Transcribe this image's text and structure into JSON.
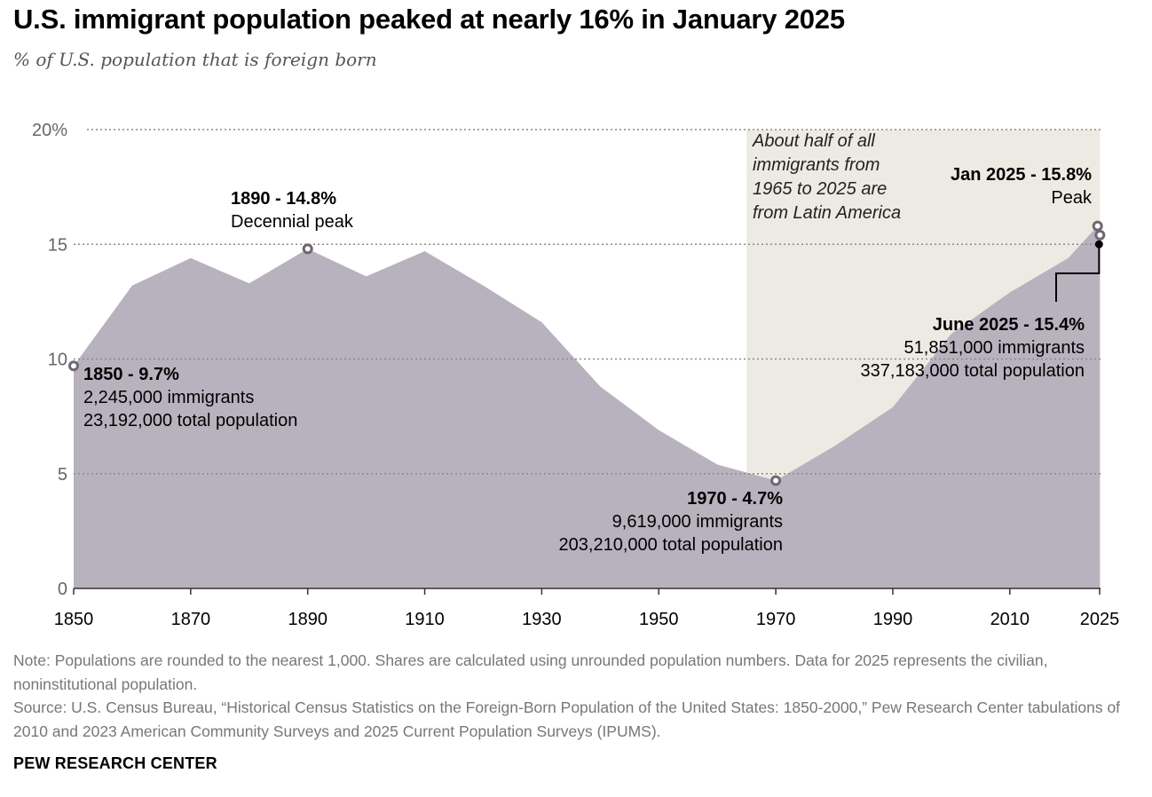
{
  "title": "U.S. immigrant population peaked at nearly 16% in January 2025",
  "subtitle": "% of U.S. population that is foreign born",
  "chart_data": {
    "type": "area",
    "title": "U.S. immigrant population peaked at nearly 16% in January 2025",
    "subtitle": "% of U.S. population that is foreign born",
    "xlabel": "",
    "ylabel": "",
    "xlim": [
      1850,
      2025.5
    ],
    "ylim": [
      0,
      20
    ],
    "x_ticks": [
      1850,
      1870,
      1890,
      1910,
      1930,
      1950,
      1970,
      1990,
      2010,
      2025
    ],
    "y_ticks": [
      0,
      5,
      10,
      15,
      20
    ],
    "y_tick_labels": [
      "0",
      "5",
      "10",
      "15",
      "20%"
    ],
    "grid": "horizontal dotted",
    "fill_color": "#b8b2be",
    "shade_color": "#edeae4",
    "shaded_range": [
      1965,
      2025.4
    ],
    "series": [
      {
        "x": [
          1850,
          1860,
          1870,
          1880,
          1890,
          1900,
          1910,
          1920,
          1930,
          1940,
          1950,
          1960,
          1970,
          1980,
          1990,
          2000,
          2010,
          2020,
          2025,
          2025.4
        ],
        "values": [
          9.7,
          13.2,
          14.4,
          13.3,
          14.8,
          13.6,
          14.7,
          13.2,
          11.6,
          8.8,
          6.9,
          5.4,
          4.7,
          6.2,
          7.9,
          11.1,
          12.9,
          14.4,
          15.8,
          15.4
        ]
      }
    ],
    "annotations": [
      {
        "year": "1850",
        "value": 9.7,
        "label": "1850 - 9.7%",
        "immigrants": "2,245,000 immigrants",
        "population": "23,192,000 total population"
      },
      {
        "year": "1890",
        "value": 14.8,
        "label": "1890 - 14.8%",
        "note": "Decennial peak"
      },
      {
        "year": "1970",
        "value": 4.7,
        "label": "1970 - 4.7%",
        "immigrants": "9,619,000 immigrants",
        "population": "203,210,000 total population"
      },
      {
        "year": "Jan 2025",
        "value": 15.8,
        "label": "Jan 2025 - 15.8%",
        "note": "Peak"
      },
      {
        "year": "June 2025",
        "value": 15.4,
        "label": "June 2025 - 15.4%",
        "immigrants": "51,851,000 immigrants",
        "population": "337,183,000 total population"
      }
    ],
    "shade_note": [
      "About half of all",
      "immigrants from",
      "1965 to 2025 are",
      "from Latin America"
    ]
  },
  "note_text": "Note: Populations are rounded to the nearest 1,000. Shares are calculated using unrounded population numbers. Data for 2025 represents the civilian, noninstitutional population.",
  "source_text": "Source: U.S. Census Bureau, “Historical Census Statistics on the Foreign-Born Population of the United States: 1850-2000,” Pew Research Center tabulations of 2010 and 2023 American Community Surveys and 2025 Current Population Surveys (IPUMS).",
  "logo_text": "PEW RESEARCH CENTER"
}
